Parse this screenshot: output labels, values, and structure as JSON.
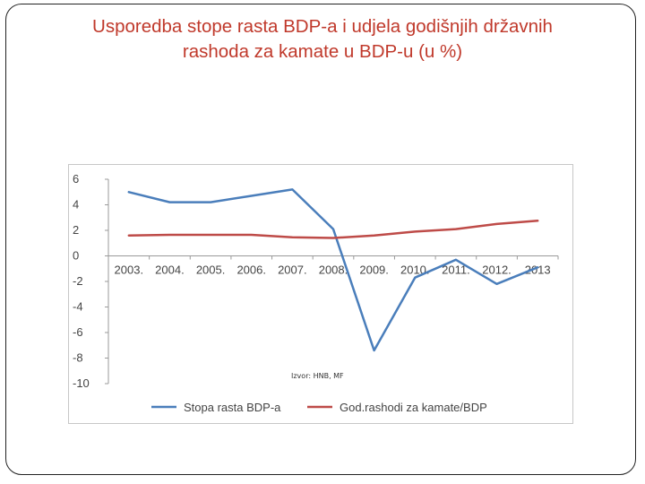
{
  "slide": {
    "title_line1": "Usporedba stope rasta BDP-a i udjela godišnjih državnih",
    "title_line2": "rashoda za kamate u BDP-u (u %)"
  },
  "chart_data": {
    "type": "line",
    "title": "Usporedba stope rasta BDP-a i udjela godišnjih državnih rashoda za kamate u BDP-u (u %)",
    "categories": [
      "2003.",
      "2004.",
      "2005.",
      "2006.",
      "2007.",
      "2008.",
      "2009.",
      "2010.",
      "2011.",
      "2012.",
      "2013"
    ],
    "series": [
      {
        "name": "Stopa rasta BDP-a",
        "color": "#4a7ebb",
        "values": [
          5.0,
          4.2,
          4.2,
          4.7,
          5.2,
          2.1,
          -7.4,
          -1.7,
          -0.3,
          -2.2,
          -0.9
        ]
      },
      {
        "name": "God.rashodi za kamate/BDP",
        "color": "#be4b48",
        "values": [
          1.6,
          1.65,
          1.65,
          1.65,
          1.45,
          1.4,
          1.6,
          1.9,
          2.1,
          2.5,
          2.75
        ]
      }
    ],
    "yticks": [
      6,
      4,
      2,
      0,
      -2,
      -4,
      -6,
      -8,
      -10
    ],
    "ylim": [
      -10,
      6
    ],
    "xlabel": "",
    "ylabel": "",
    "grid": false,
    "legend_position": "bottom",
    "source_note": "Izvor: HNB, MF"
  }
}
